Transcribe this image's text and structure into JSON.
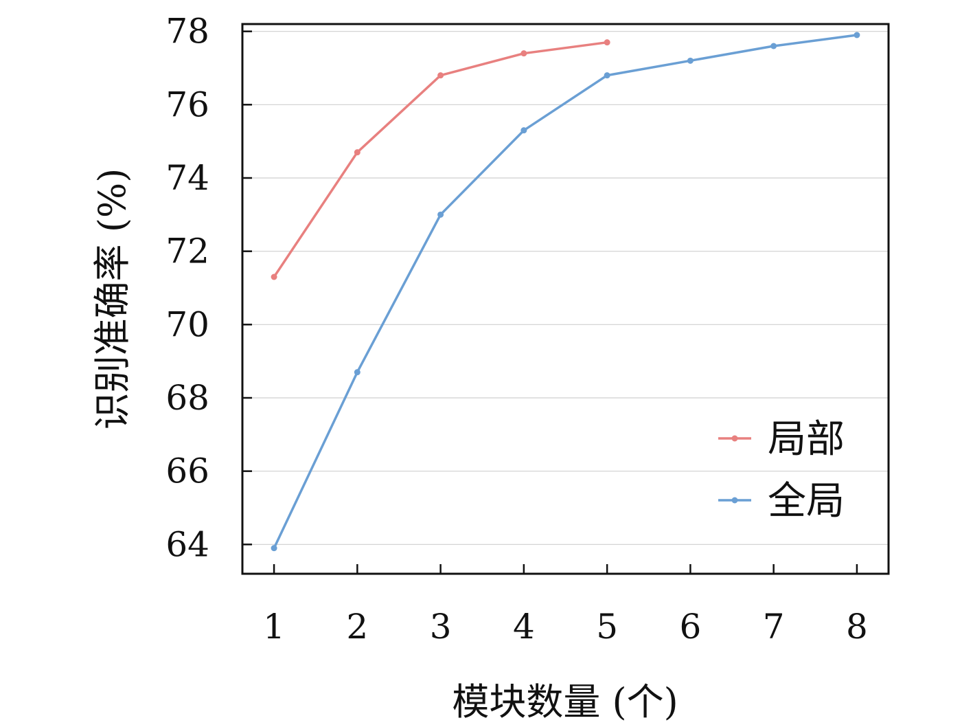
{
  "chart_data": {
    "type": "line",
    "xlabel": "模块数量 (个)",
    "ylabel": "识别准确率 (%)",
    "x_ticks": [
      1,
      2,
      3,
      4,
      5,
      6,
      7,
      8
    ],
    "y_ticks": [
      64,
      66,
      68,
      70,
      72,
      74,
      76,
      78
    ],
    "xlim": [
      0.62,
      8.38
    ],
    "ylim": [
      63.2,
      78.2
    ],
    "grid": "horizontal",
    "legend_position": "bottom-right",
    "series": [
      {
        "name": "局部",
        "color": "#e8807f",
        "x": [
          1,
          2,
          3,
          4,
          5
        ],
        "y": [
          71.3,
          74.7,
          76.8,
          77.4,
          77.7
        ]
      },
      {
        "name": "全局",
        "color": "#6a9fd4",
        "x": [
          1,
          2,
          3,
          4,
          5,
          6,
          7,
          8
        ],
        "y": [
          63.9,
          68.7,
          73.0,
          75.3,
          76.8,
          77.2,
          77.6,
          77.9
        ]
      }
    ]
  }
}
